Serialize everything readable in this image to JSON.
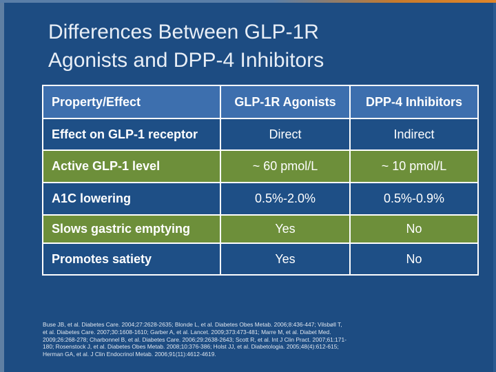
{
  "slide": {
    "title_lines": [
      "Differences Between GLP-1R",
      "Agonists and DPP-4 Inhibitors"
    ]
  },
  "table": {
    "headers": [
      "Property/Effect",
      "GLP-1R Agonists",
      "DPP-4 Inhibitors"
    ],
    "rows": [
      {
        "property": "Effect on GLP-1 receptor",
        "glp1": "Direct",
        "dpp4": "Indirect"
      },
      {
        "property": "Active GLP-1 level",
        "glp1": "~ 60 pmol/L",
        "dpp4": "~ 10 pmol/L"
      },
      {
        "property": "A1C lowering",
        "glp1": "0.5%-2.0%",
        "dpp4": "0.5%-0.9%"
      },
      {
        "property": "Slows gastric emptying",
        "glp1": "Yes",
        "dpp4": "No"
      },
      {
        "property": "Promotes satiety",
        "glp1": "Yes",
        "dpp4": "No"
      }
    ]
  },
  "references": {
    "lines": [
      "Buse JB, et al. Diabetes Care. 2004;27:2628-2635; Blonde L, et al. Diabetes Obes Metab. 2006;8:436-447; Vilsbøll T,",
      "et al. Diabetes Care. 2007;30:1608-1610; Garber A, et al. Lancet. 2009;373:473-481; Marre M, et al. Diabet Med.",
      "2009;26:268-278; Charbonnel B, et al. Diabetes Care. 2006;29:2638-2643; Scott R, et al. Int J Clin Pract. 2007;61:171-",
      "180; Rosenstock J, et al. Diabetes Obes Metab. 2008;10:376-386; Holst JJ, et al. Diabetologia. 2005;48(4):612-615;",
      "Herman GA, et al. J Clin Endocrinol Metab. 2006;91(11):4612-4619."
    ]
  },
  "colors": {
    "background": "#1d4c82",
    "header_row": "#3d6fae",
    "green_row": "#6d8f3a",
    "accent_orange": "#e0862a"
  }
}
